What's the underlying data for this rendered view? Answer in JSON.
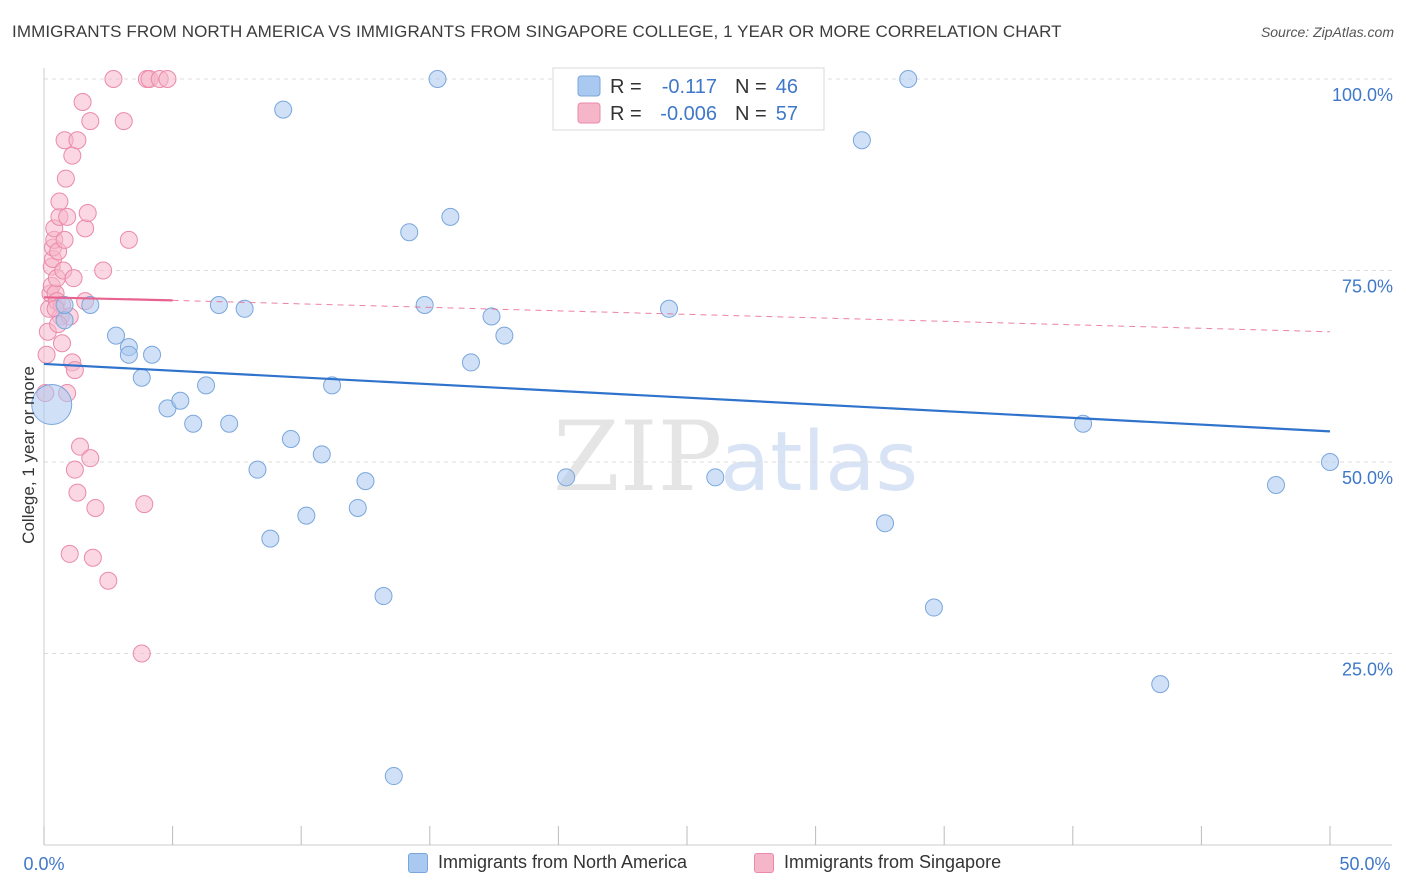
{
  "header": {
    "title": "IMMIGRANTS FROM NORTH AMERICA VS IMMIGRANTS FROM SINGAPORE COLLEGE, 1 YEAR OR MORE CORRELATION CHART",
    "source": "Source: ZipAtlas.com"
  },
  "watermark": {
    "zip": "ZIP",
    "atlas": "atlas"
  },
  "legend_top": {
    "rows": [
      {
        "r_label": "R =",
        "r_value": "-0.117",
        "n_label": "N =",
        "n_value": "46"
      },
      {
        "r_label": "R =",
        "r_value": "-0.006",
        "n_label": "N =",
        "n_value": "57"
      }
    ]
  },
  "legend_bottom": {
    "series_a": "Immigrants from North America",
    "series_b": "Immigrants from Singapore"
  },
  "colors": {
    "blue_fill": "#aac9f0",
    "blue_stroke": "#7aa6dc",
    "blue_line": "#2f73cc",
    "pink_fill": "#f5b6ca",
    "pink_stroke": "#eb8aaa",
    "pink_line": "#e8628e",
    "axis_label": "#3f78c9",
    "grid": "#dddddd"
  },
  "chart_data": {
    "type": "scatter",
    "title": "IMMIGRANTS FROM NORTH AMERICA VS IMMIGRANTS FROM SINGAPORE COLLEGE, 1 YEAR OR MORE CORRELATION CHART",
    "xlabel": "",
    "ylabel": "College, 1 year or more",
    "xlim": [
      0,
      50
    ],
    "ylim": [
      0,
      103
    ],
    "x_tick_labels": [
      "0.0%",
      "50.0%"
    ],
    "y_ticks": [
      25,
      50,
      75,
      100
    ],
    "y_tick_labels": [
      "25.0%",
      "50.0%",
      "75.0%",
      "100.0%"
    ],
    "grid": true,
    "legend_position": "top-center",
    "series": [
      {
        "name": "Immigrants from North America",
        "color": "#aac9f0",
        "R": -0.117,
        "N": 46,
        "trend": {
          "x": [
            0,
            50
          ],
          "y": [
            62.8,
            54.0
          ]
        },
        "points": [
          [
            0.3,
            57.5
          ],
          [
            0.8,
            68.5
          ],
          [
            0.8,
            70.5
          ],
          [
            1.8,
            70.5
          ],
          [
            2.8,
            66.5
          ],
          [
            3.3,
            65.0
          ],
          [
            3.3,
            64.0
          ],
          [
            3.8,
            61.0
          ],
          [
            4.2,
            64.0
          ],
          [
            4.8,
            57.0
          ],
          [
            5.3,
            58.0
          ],
          [
            5.8,
            55.0
          ],
          [
            6.3,
            60.0
          ],
          [
            6.8,
            70.5
          ],
          [
            7.2,
            55.0
          ],
          [
            7.8,
            70.0
          ],
          [
            8.3,
            49.0
          ],
          [
            8.8,
            40.0
          ],
          [
            9.3,
            96.0
          ],
          [
            9.6,
            53.0
          ],
          [
            10.2,
            43.0
          ],
          [
            10.8,
            51.0
          ],
          [
            11.2,
            60.0
          ],
          [
            12.2,
            44.0
          ],
          [
            12.5,
            47.5
          ],
          [
            13.2,
            32.5
          ],
          [
            13.6,
            9.0
          ],
          [
            14.2,
            80.0
          ],
          [
            14.8,
            70.5
          ],
          [
            15.3,
            100.0
          ],
          [
            15.8,
            82.0
          ],
          [
            16.6,
            63.0
          ],
          [
            17.4,
            69.0
          ],
          [
            17.9,
            66.5
          ],
          [
            20.3,
            48.0
          ],
          [
            24.3,
            70.0
          ],
          [
            26.1,
            48.0
          ],
          [
            29.1,
            100.0
          ],
          [
            31.8,
            92.0
          ],
          [
            32.7,
            42.0
          ],
          [
            33.6,
            100.0
          ],
          [
            34.6,
            31.0
          ],
          [
            40.4,
            55.0
          ],
          [
            43.4,
            21.0
          ],
          [
            47.9,
            47.0
          ],
          [
            50.0,
            50.0
          ]
        ]
      },
      {
        "name": "Immigrants from Singapore",
        "color": "#f5b6ca",
        "R": -0.006,
        "N": 57,
        "trend": {
          "x": [
            0,
            5
          ],
          "y": [
            71.5,
            71.1
          ]
        },
        "trend_dashed": {
          "x": [
            5,
            50
          ],
          "y": [
            71.1,
            67.0
          ]
        },
        "points": [
          [
            0.05,
            59.0
          ],
          [
            0.1,
            64.0
          ],
          [
            0.15,
            67.0
          ],
          [
            0.2,
            70.0
          ],
          [
            0.25,
            72.0
          ],
          [
            0.3,
            73.0
          ],
          [
            0.3,
            75.5
          ],
          [
            0.35,
            76.5
          ],
          [
            0.35,
            78.0
          ],
          [
            0.4,
            79.0
          ],
          [
            0.4,
            80.5
          ],
          [
            0.45,
            72.0
          ],
          [
            0.5,
            71.0
          ],
          [
            0.5,
            74.0
          ],
          [
            0.55,
            77.5
          ],
          [
            0.6,
            82.0
          ],
          [
            0.6,
            84.0
          ],
          [
            0.65,
            69.0
          ],
          [
            0.7,
            70.5
          ],
          [
            0.7,
            65.5
          ],
          [
            0.75,
            75.0
          ],
          [
            0.8,
            79.0
          ],
          [
            0.8,
            92.0
          ],
          [
            0.85,
            87.0
          ],
          [
            0.9,
            82.0
          ],
          [
            0.9,
            59.0
          ],
          [
            1.0,
            69.0
          ],
          [
            1.0,
            38.0
          ],
          [
            1.1,
            90.0
          ],
          [
            1.1,
            63.0
          ],
          [
            1.15,
            74.0
          ],
          [
            1.2,
            49.0
          ],
          [
            1.2,
            62.0
          ],
          [
            1.3,
            46.0
          ],
          [
            1.3,
            92.0
          ],
          [
            1.4,
            52.0
          ],
          [
            1.5,
            97.0
          ],
          [
            1.6,
            71.0
          ],
          [
            1.6,
            80.5
          ],
          [
            1.7,
            82.5
          ],
          [
            1.8,
            50.5
          ],
          [
            1.8,
            94.5
          ],
          [
            1.9,
            37.5
          ],
          [
            2.0,
            44.0
          ],
          [
            2.3,
            75.0
          ],
          [
            2.5,
            34.5
          ],
          [
            2.7,
            100.0
          ],
          [
            3.1,
            94.5
          ],
          [
            3.3,
            79.0
          ],
          [
            3.8,
            25.0
          ],
          [
            3.9,
            44.5
          ],
          [
            4.0,
            100.0
          ],
          [
            4.1,
            100.0
          ],
          [
            4.5,
            100.0
          ],
          [
            4.8,
            100.0
          ],
          [
            0.45,
            70.0
          ],
          [
            0.55,
            68.0
          ]
        ]
      }
    ]
  }
}
